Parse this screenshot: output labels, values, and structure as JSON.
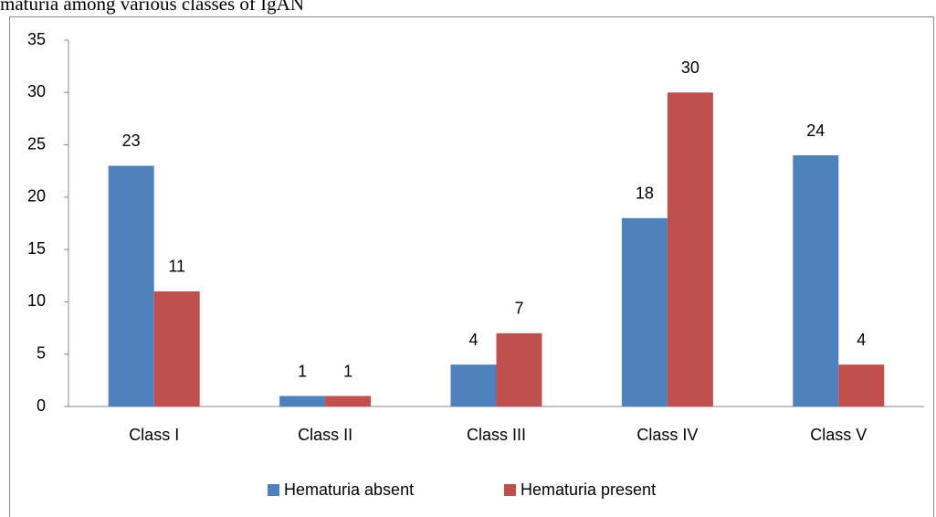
{
  "chart_data": {
    "type": "bar",
    "title": "maturia among various classes of IgAN",
    "categories": [
      "Class I",
      "Class II",
      "Class III",
      "Class IV",
      "Class V"
    ],
    "series": [
      {
        "name": "Hematuria absent",
        "color": "#4f81bd",
        "values": [
          23,
          1,
          4,
          18,
          24
        ]
      },
      {
        "name": "Hematuria present",
        "color": "#c0504d",
        "values": [
          11,
          1,
          7,
          30,
          4
        ]
      }
    ],
    "ylim": [
      0,
      35
    ],
    "yticks": [
      0,
      5,
      10,
      15,
      20,
      25,
      30,
      35
    ],
    "legend": "bottom",
    "grid": false
  }
}
